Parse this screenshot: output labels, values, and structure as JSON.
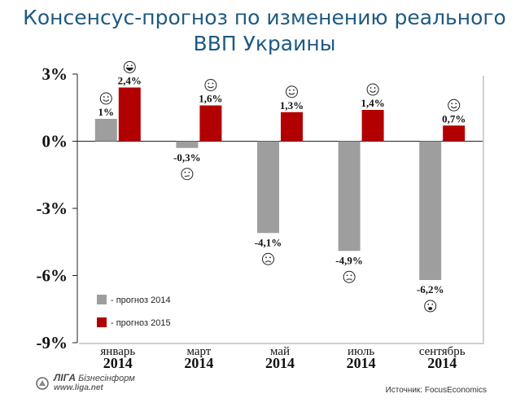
{
  "title": "Консенсус-прогноз по изменению реального ВВП Украины",
  "title_lines": [
    "Консенсус-прогноз по изменению реального",
    "ВВП Украины"
  ],
  "chart_data": {
    "type": "bar",
    "title": "Консенсус-прогноз по изменению реального ВВП Украины",
    "categories": [
      {
        "month": "январь",
        "year": "2014"
      },
      {
        "month": "март",
        "year": "2014"
      },
      {
        "month": "май",
        "year": "2014"
      },
      {
        "month": "июль",
        "year": "2014"
      },
      {
        "month": "сентябрь",
        "year": "2014"
      }
    ],
    "series": [
      {
        "name": "- прогноз 2014",
        "color": "#9e9e9e",
        "values": [
          1,
          -0.3,
          -4.1,
          -4.9,
          -6.2
        ],
        "labels": [
          "1%",
          "-0,3%",
          "-4,1%",
          "-4,9%",
          "-6,2%"
        ],
        "moods": [
          "smile",
          "neutral",
          "sad",
          "sad",
          "cry"
        ]
      },
      {
        "name": "- прогноз 2015",
        "color": "#b20000",
        "values": [
          2.4,
          1.6,
          1.3,
          1.4,
          0.7
        ],
        "labels": [
          "2,4%",
          "1,6%",
          "1,3%",
          "1,4%",
          "0,7%"
        ],
        "moods": [
          "grin",
          "smile",
          "smile",
          "smile",
          "smile"
        ]
      }
    ],
    "ylim": [
      -9,
      3
    ],
    "yticks": [
      3,
      0,
      -3,
      -6,
      -9
    ],
    "ytick_labels": [
      "3%",
      "0%",
      "-3%",
      "-6%",
      "-9%"
    ],
    "xlabel": "",
    "ylabel": "",
    "legend_position": "bottom-left",
    "grid": false
  },
  "footer": {
    "brand": "ЛІГА",
    "sub": "Бізнесінформ",
    "url": "www.liga.net",
    "source": "Источник: FocusEconomics"
  }
}
